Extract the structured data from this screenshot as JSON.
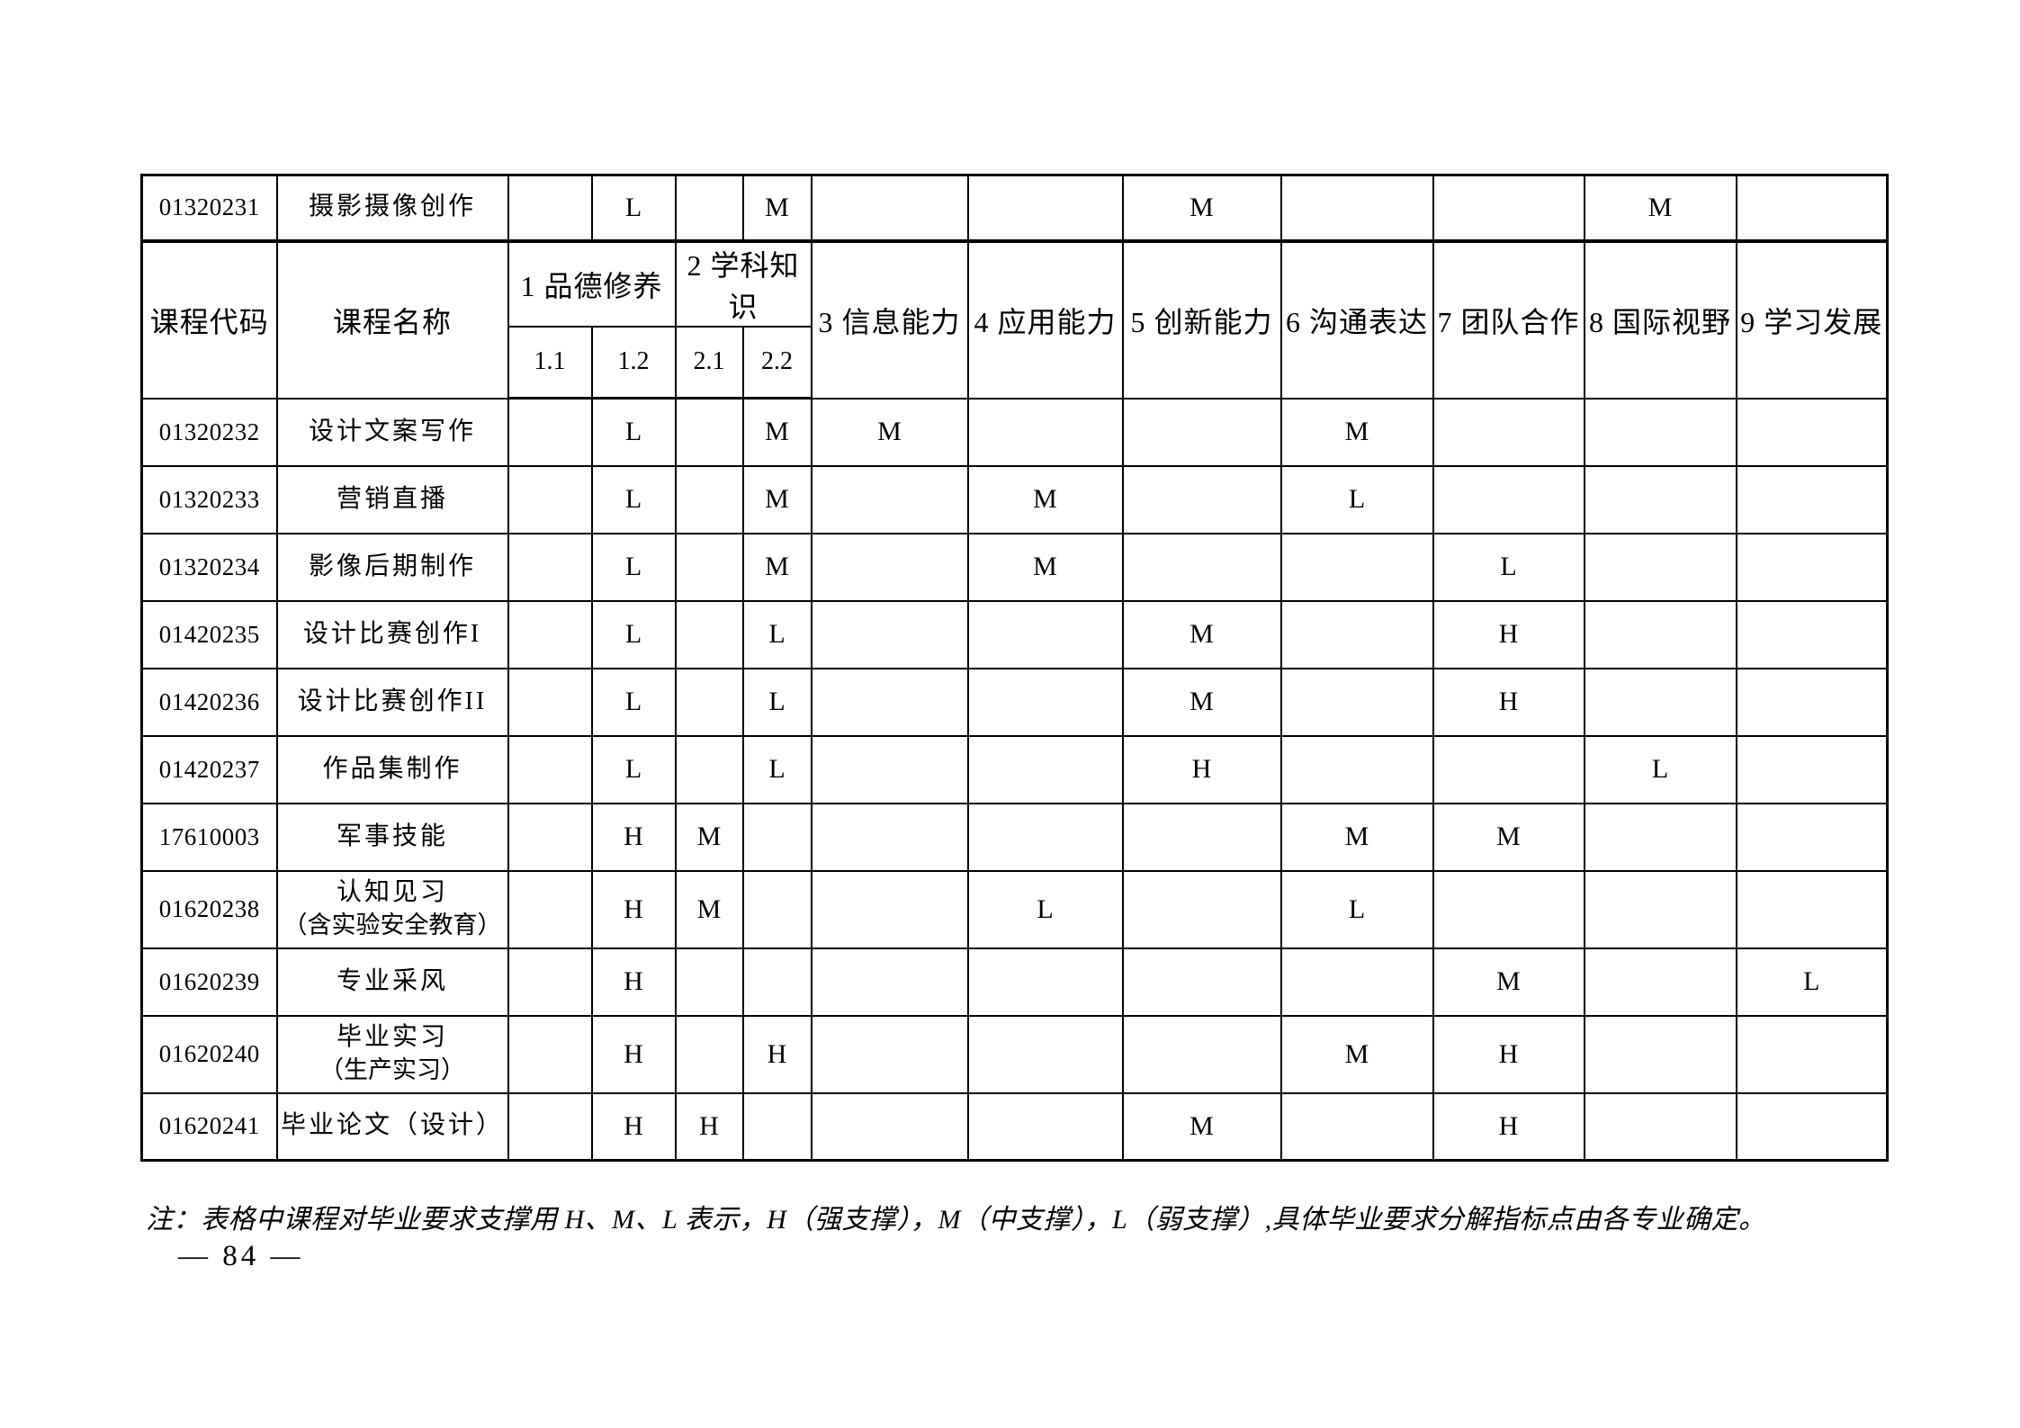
{
  "table": {
    "pre_header_row": {
      "code": "01320231",
      "name": [
        "摄影摄像创作"
      ],
      "values": [
        "",
        "L",
        "",
        "M",
        "",
        "",
        "M",
        "",
        "",
        "M",
        ""
      ]
    },
    "header": {
      "col_code": "课程代码",
      "col_name": "课程名称",
      "group1": "1 品德修养",
      "group2": "2 学科知识",
      "sub": [
        "1.1",
        "1.2",
        "2.1",
        "2.2"
      ],
      "cols": [
        "3 信息能力",
        "4 应用能力",
        "5 创新能力",
        "6 沟通表达",
        "7 团队合作",
        "8 国际视野",
        "9 学习发展"
      ]
    },
    "rows": [
      {
        "code": "01320232",
        "name": [
          "设计文案写作"
        ],
        "values": [
          "",
          "L",
          "",
          "M",
          "M",
          "",
          "",
          "M",
          "",
          "",
          ""
        ]
      },
      {
        "code": "01320233",
        "name": [
          "营销直播"
        ],
        "values": [
          "",
          "L",
          "",
          "M",
          "",
          "M",
          "",
          "L",
          "",
          "",
          ""
        ]
      },
      {
        "code": "01320234",
        "name": [
          "影像后期制作"
        ],
        "values": [
          "",
          "L",
          "",
          "M",
          "",
          "M",
          "",
          "",
          "L",
          "",
          ""
        ]
      },
      {
        "code": "01420235",
        "name": [
          "设计比赛创作I"
        ],
        "values": [
          "",
          "L",
          "",
          "L",
          "",
          "",
          "M",
          "",
          "H",
          "",
          ""
        ]
      },
      {
        "code": "01420236",
        "name": [
          "设计比赛创作II"
        ],
        "values": [
          "",
          "L",
          "",
          "L",
          "",
          "",
          "M",
          "",
          "H",
          "",
          ""
        ]
      },
      {
        "code": "01420237",
        "name": [
          "作品集制作"
        ],
        "values": [
          "",
          "L",
          "",
          "L",
          "",
          "",
          "H",
          "",
          "",
          "L",
          ""
        ]
      },
      {
        "code": "17610003",
        "name": [
          "军事技能"
        ],
        "values": [
          "",
          "H",
          "M",
          "",
          "",
          "",
          "",
          "M",
          "M",
          "",
          ""
        ]
      },
      {
        "code": "01620238",
        "name": [
          "认知见习",
          "（含实验安全教育）"
        ],
        "values": [
          "",
          "H",
          "M",
          "",
          "",
          "L",
          "",
          "L",
          "",
          "",
          ""
        ]
      },
      {
        "code": "01620239",
        "name": [
          "专业采风"
        ],
        "values": [
          "",
          "H",
          "",
          "",
          "",
          "",
          "",
          "",
          "M",
          "",
          "L"
        ]
      },
      {
        "code": "01620240",
        "name": [
          "毕业实习",
          "（生产实习）"
        ],
        "values": [
          "",
          "H",
          "",
          "H",
          "",
          "",
          "",
          "M",
          "H",
          "",
          ""
        ]
      },
      {
        "code": "01620241",
        "name": [
          "毕业论文（设计）"
        ],
        "values": [
          "",
          "H",
          "H",
          "",
          "",
          "",
          "M",
          "",
          "H",
          "",
          ""
        ]
      }
    ]
  },
  "note": "注：表格中课程对毕业要求支撑用 H、M、L 表示，H（强支撑），M（中支撑），L（弱支撑）,具体毕业要求分解指标点由各专业确定。",
  "page_number": "— 84 —"
}
